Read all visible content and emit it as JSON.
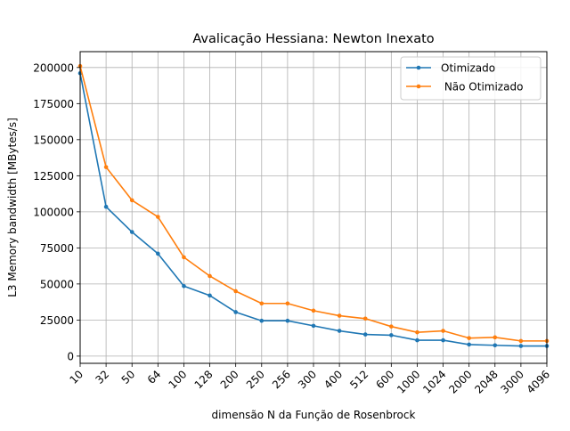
{
  "chart_data": {
    "type": "line",
    "title": "Avalicação Hessiana:  Newton Inexato",
    "xlabel": "dimensão N da Função de Rosenbrock",
    "ylabel": "L3 Memory bandwidth [MBytes/s]",
    "categories": [
      "10",
      "32",
      "50",
      "64",
      "100",
      "128",
      "200",
      "250",
      "256",
      "300",
      "400",
      "512",
      "600",
      "1000",
      "1024",
      "2000",
      "2048",
      "3000",
      "4096"
    ],
    "ylim": [
      -5000,
      211000
    ],
    "yticks": [
      0,
      25000,
      50000,
      75000,
      100000,
      125000,
      150000,
      175000,
      200000
    ],
    "ytick_labels": [
      "0",
      "25000",
      "50000",
      "75000",
      "100000",
      "125000",
      "150000",
      "175000",
      "200000"
    ],
    "grid": true,
    "legend_position": "top-right",
    "series": [
      {
        "name": "Otimizado",
        "color": "#1f77b4",
        "marker": "point",
        "values": [
          196000,
          103500,
          86000,
          71000,
          48500,
          42000,
          30500,
          24500,
          24500,
          21000,
          17500,
          15000,
          14500,
          11000,
          11000,
          8000,
          7500,
          7000,
          7000
        ]
      },
      {
        "name": " Não Otimizado",
        "color": "#ff7f0e",
        "marker": "point",
        "values": [
          201000,
          131000,
          108000,
          96500,
          68500,
          55500,
          45000,
          36500,
          36500,
          31500,
          28000,
          26000,
          20500,
          16500,
          17500,
          12500,
          13000,
          10500,
          10500
        ]
      }
    ]
  }
}
